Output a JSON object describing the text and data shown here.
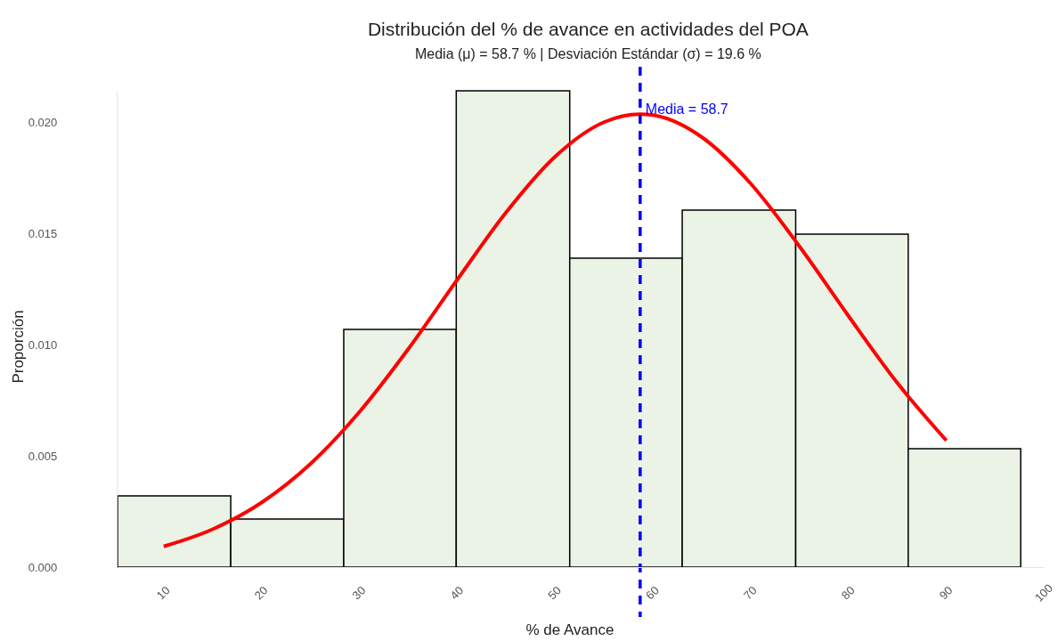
{
  "chart_data": {
    "type": "histogram",
    "title": "Distribución del % de avance en actividades del POA",
    "subtitle": "Media (μ) = 58.7 % | Desviación Estándar (σ) = 19.6 %",
    "xlabel": "% de Avance",
    "ylabel": "Proporción",
    "series": [
      {
        "bins": [
          5.3,
          16.85,
          28.4,
          39.9,
          51.5,
          63.0,
          74.6,
          86.1,
          97.6
        ],
        "values": [
          0.0032,
          0.00216,
          0.01068,
          0.0214,
          0.01388,
          0.01604,
          0.01496,
          0.00532
        ],
        "color": "#ebf2e6"
      },
      {
        "type": "line",
        "x": [
          10,
          15,
          20,
          25,
          30,
          35,
          40,
          45,
          50,
          55,
          58.7,
          60,
          65,
          70,
          75,
          80,
          85,
          90
        ],
        "values": [
          0.00093,
          0.0017,
          0.0029,
          0.00464,
          0.00697,
          0.0098,
          0.01291,
          0.01594,
          0.01844,
          0.01999,
          0.02035,
          0.02031,
          0.01932,
          0.01723,
          0.0144,
          0.01128,
          0.00827,
          0.00569
        ],
        "color": "#ff0000"
      }
    ],
    "ref_lines": [
      {
        "axis": "x",
        "value": 58.7,
        "label": "Media = 58.7",
        "color": "#0000ff",
        "line_style": "dashed"
      }
    ],
    "xlim": [
      5.3,
      100
    ],
    "xticks": [
      10,
      20,
      30,
      40,
      50,
      60,
      70,
      80,
      90,
      100
    ],
    "ylim": [
      0,
      0.0214
    ],
    "yticks": [
      {
        "value": 0,
        "label": "0.000"
      },
      {
        "value": 0.005,
        "label": "0.005"
      },
      {
        "value": 0.01,
        "label": "0.010"
      },
      {
        "value": 0.015,
        "label": "0.015"
      },
      {
        "value": 0.02,
        "label": "0.020"
      }
    ],
    "grid": false
  }
}
